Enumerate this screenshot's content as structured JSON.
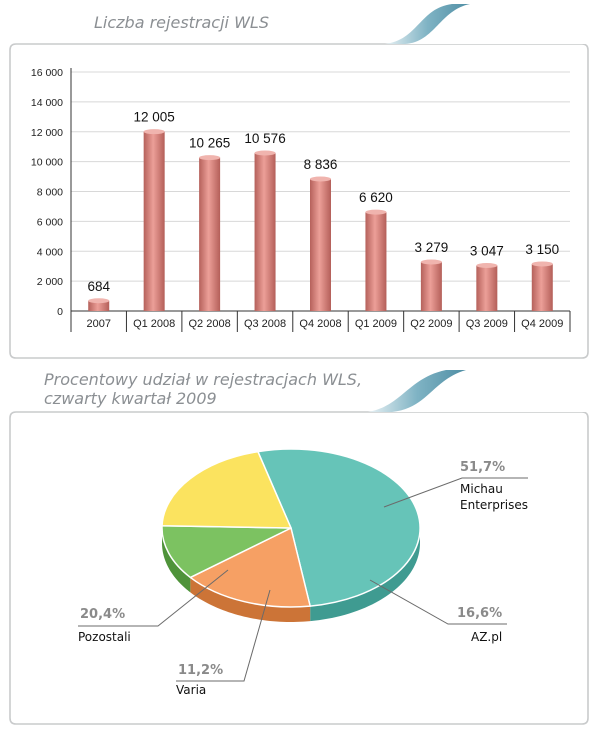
{
  "colors": {
    "bar_fill": "#d98c85",
    "bar_dark": "#b4625c",
    "panel_border": "#c9cbcc",
    "tab_accent": "#6aa3b7",
    "grid": "#d8d8d8"
  },
  "chart_data": [
    {
      "type": "bar",
      "title": "Liczba rejestracji WLS",
      "categories": [
        "2007",
        "Q1 2008",
        "Q2 2008",
        "Q3 2008",
        "Q4 2008",
        "Q1 2009",
        "Q2 2009",
        "Q3 2009",
        "Q4 2009"
      ],
      "values": [
        684,
        12005,
        10265,
        10576,
        8836,
        6620,
        3279,
        3047,
        3150
      ],
      "value_labels": [
        "684",
        "12 005",
        "10 265",
        "10 576",
        "8 836",
        "6 620",
        "3 279",
        "3 047",
        "3 150"
      ],
      "ylim": [
        0,
        16000
      ],
      "yticks": [
        "0",
        "2 000",
        "4 000",
        "6 000",
        "8 000",
        "10 000",
        "12 000",
        "14 000",
        "16 000"
      ],
      "grid": true
    },
    {
      "type": "pie",
      "title_lines": [
        "Procentowy udział w rejestracjach WLS,",
        "czwarty kwartał 2009"
      ],
      "slices": [
        {
          "label_lines": [
            "Michau",
            "Enterprises"
          ],
          "value": 51.7,
          "value_label": "51,7%",
          "color": "#66c4b8",
          "side": "#3f9b91"
        },
        {
          "label_lines": [
            "AZ.pl"
          ],
          "value": 16.6,
          "value_label": "16,6%",
          "color": "#f6a064",
          "side": "#cc7437"
        },
        {
          "label_lines": [
            "Varia"
          ],
          "value": 11.2,
          "value_label": "11,2%",
          "color": "#7cc261",
          "side": "#4f933a"
        },
        {
          "label_lines": [
            "Pozostali"
          ],
          "value": 20.4,
          "value_label": "20,4%",
          "color": "#fbe35f",
          "side": "#c9a834"
        }
      ]
    }
  ]
}
